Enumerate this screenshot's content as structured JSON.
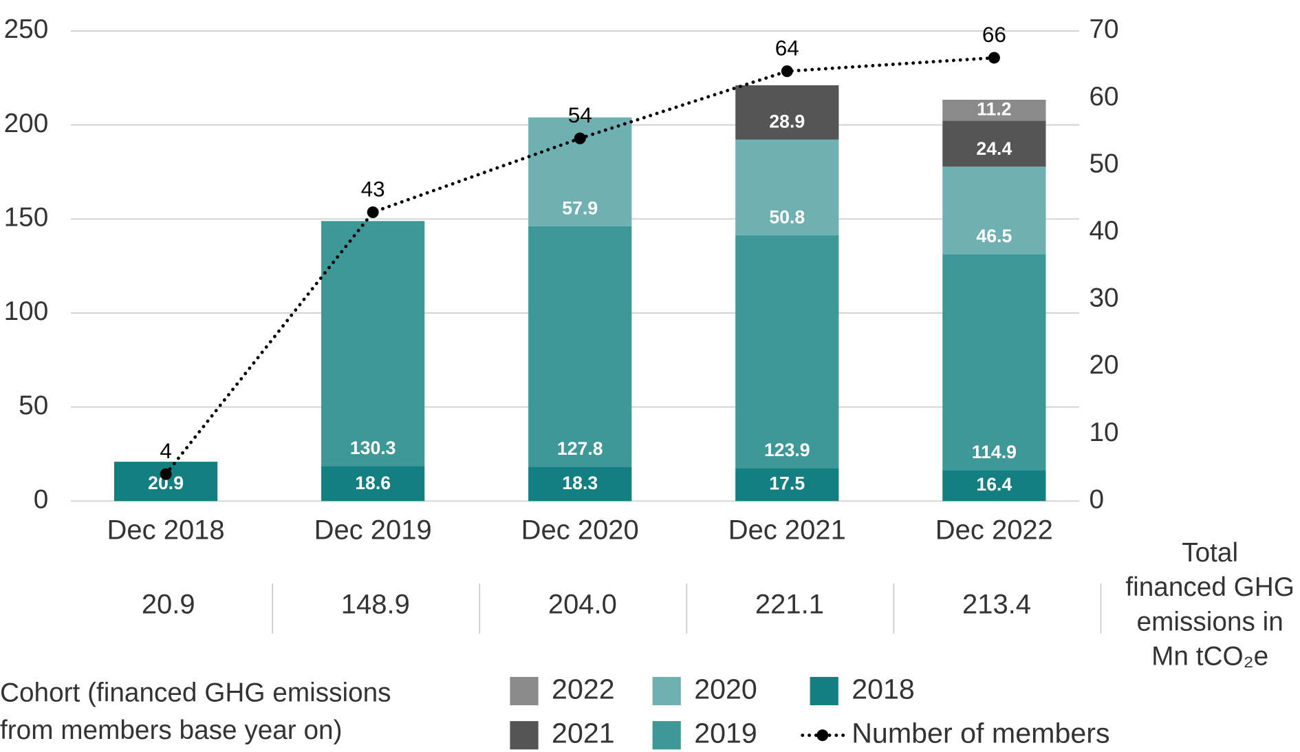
{
  "chart_data": {
    "type": "bar",
    "stacked": true,
    "categories": [
      "Dec 2018",
      "Dec 2019",
      "Dec 2020",
      "Dec 2021",
      "Dec 2022"
    ],
    "series": [
      {
        "name": "2018",
        "color": "#137f80",
        "values": [
          20.9,
          18.6,
          18.3,
          17.5,
          16.4
        ]
      },
      {
        "name": "2019",
        "color": "#3f9898",
        "values": [
          null,
          130.3,
          127.8,
          123.9,
          114.9
        ]
      },
      {
        "name": "2020",
        "color": "#6fb0b2",
        "values": [
          null,
          null,
          57.9,
          50.8,
          46.5
        ]
      },
      {
        "name": "2021",
        "color": "#555555",
        "values": [
          null,
          null,
          null,
          28.9,
          24.4
        ]
      },
      {
        "name": "2022",
        "color": "#8a8a8a",
        "values": [
          null,
          null,
          null,
          null,
          11.2
        ]
      },
      {
        "name": "Number of members",
        "type": "line",
        "axis": "y2",
        "color": "#000000",
        "values": [
          4,
          43,
          54,
          64,
          66
        ]
      }
    ],
    "ylim": [
      0,
      250
    ],
    "yticks": [
      0,
      50,
      100,
      150,
      200,
      250
    ],
    "y2lim": [
      0,
      70
    ],
    "y2ticks": [
      0,
      10,
      20,
      30,
      40,
      50,
      60,
      70
    ],
    "grid": true,
    "legend_title": "Cohort (financed GHG emissions from members base year on)",
    "total_row": {
      "label": "Total financed GHG emissions in Mn tCO₂e",
      "values": [
        "20.9",
        "148.9",
        "204.0",
        "221.1",
        "213.4"
      ]
    }
  }
}
